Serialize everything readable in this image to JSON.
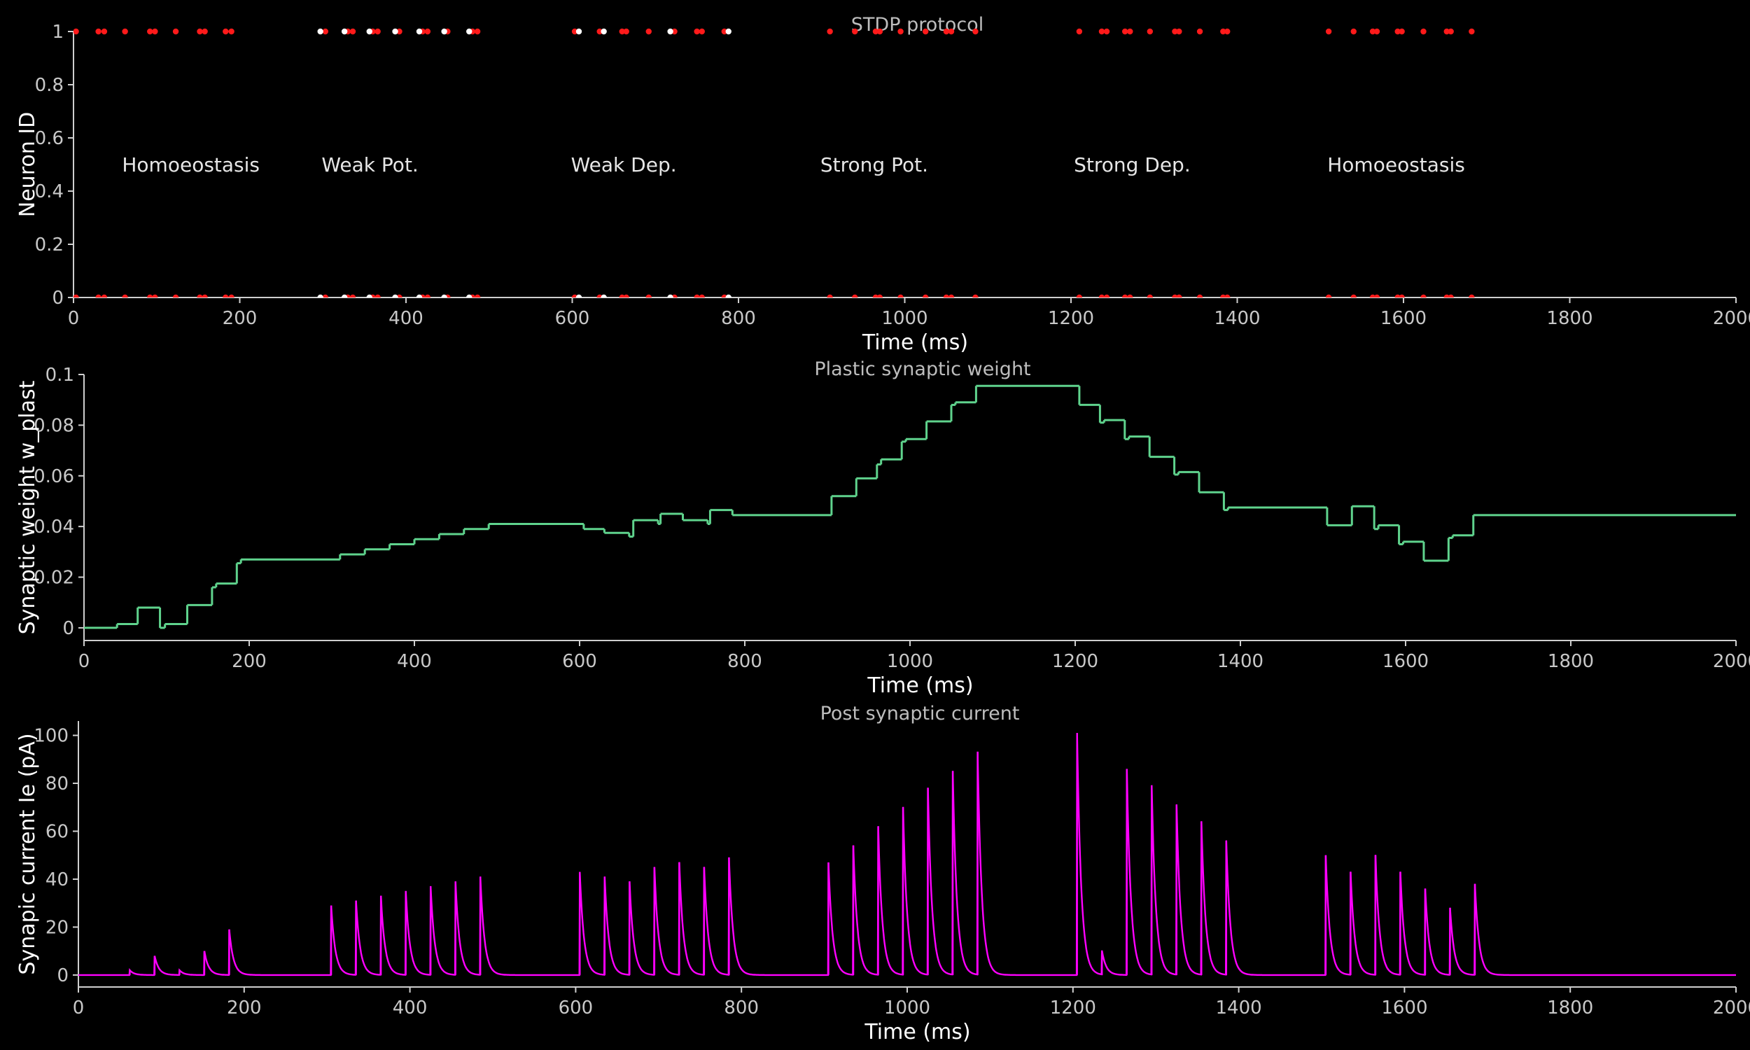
{
  "chart_data": [
    {
      "type": "scatter",
      "title": "STDP protocol",
      "xlabel": "Time (ms)",
      "ylabel": "Neuron ID",
      "xlim": [
        0,
        2000
      ],
      "ylim": [
        0,
        1
      ],
      "xticks": [
        "0",
        "200",
        "400",
        "600",
        "800",
        "1000",
        "1200",
        "1400",
        "1600",
        "1800",
        "2000"
      ],
      "yticks": [
        "0",
        "0.2",
        "0.4",
        "0.6",
        "0.8",
        "1"
      ],
      "grid": false,
      "colors": {
        "red": "#ff1a1a",
        "white": "#ffffff"
      },
      "annotations": [
        {
          "text": "Homoeostasis",
          "x": 50,
          "y": 0.5
        },
        {
          "text": "Weak Pot.",
          "x": 290,
          "y": 0.5
        },
        {
          "text": "Weak Dep.",
          "x": 590,
          "y": 0.5
        },
        {
          "text": "Strong Pot.",
          "x": 890,
          "y": 0.5
        },
        {
          "text": "Strong Dep.",
          "x": 1195,
          "y": 0.5
        },
        {
          "text": "Homoeostasis",
          "x": 1500,
          "y": 0.5
        }
      ],
      "series": [
        {
          "color": "red",
          "neuron": 1,
          "x": [
            3,
            30,
            37,
            62,
            92,
            98,
            123,
            152,
            158,
            183,
            190,
            303,
            330,
            336,
            360,
            366,
            392,
            420,
            426,
            450,
            480,
            486,
            603,
            633,
            660,
            665,
            692,
            723,
            750,
            756,
            783,
            910,
            940,
            965,
            970,
            995,
            1025,
            1050,
            1056,
            1085,
            1210,
            1237,
            1243,
            1265,
            1271,
            1295,
            1325,
            1330,
            1355,
            1383,
            1388,
            1510,
            1540,
            1563,
            1568,
            1593,
            1598,
            1624,
            1652,
            1657,
            1682
          ]
        },
        {
          "color": "white",
          "neuron": 1,
          "x": [
            297,
            326,
            356,
            387,
            416,
            446,
            476,
            608,
            638,
            718,
            788
          ]
        },
        {
          "color": "red",
          "neuron": 0,
          "x": [
            3,
            30,
            37,
            62,
            92,
            98,
            123,
            152,
            158,
            183,
            190,
            303,
            330,
            336,
            360,
            366,
            392,
            420,
            426,
            450,
            480,
            486,
            603,
            633,
            660,
            665,
            692,
            723,
            750,
            756,
            783,
            910,
            940,
            965,
            970,
            995,
            1025,
            1050,
            1056,
            1085,
            1210,
            1237,
            1243,
            1265,
            1271,
            1295,
            1325,
            1330,
            1355,
            1383,
            1388,
            1510,
            1540,
            1563,
            1568,
            1593,
            1598,
            1624,
            1652,
            1657,
            1682
          ]
        },
        {
          "color": "white",
          "neuron": 0,
          "x": [
            297,
            326,
            356,
            387,
            416,
            446,
            476,
            608,
            638,
            718,
            788
          ]
        }
      ]
    },
    {
      "type": "line",
      "title": "Plastic synaptic weight",
      "xlabel": "Time (ms)",
      "ylabel": "Synaptic weight w_plast",
      "xlim": [
        0,
        2000
      ],
      "ylim": [
        -0.005,
        0.1
      ],
      "xticks": [
        "0",
        "200",
        "400",
        "600",
        "800",
        "1000",
        "1200",
        "1400",
        "1600",
        "1800",
        "2000"
      ],
      "yticks": [
        "0",
        "0.02",
        "0.04",
        "0.06",
        "0.08",
        "0.1"
      ],
      "grid": false,
      "color": "#5fd38d",
      "step_points": [
        [
          0,
          0
        ],
        [
          40,
          0.0015
        ],
        [
          65,
          0.008
        ],
        [
          92,
          0
        ],
        [
          98,
          0.0015
        ],
        [
          125,
          0.009
        ],
        [
          155,
          0.016
        ],
        [
          160,
          0.0175
        ],
        [
          185,
          0.0255
        ],
        [
          190,
          0.027
        ],
        [
          310,
          0.029
        ],
        [
          340,
          0.031
        ],
        [
          370,
          0.033
        ],
        [
          400,
          0.035
        ],
        [
          430,
          0.037
        ],
        [
          460,
          0.039
        ],
        [
          490,
          0.041
        ],
        [
          605,
          0.039
        ],
        [
          630,
          0.0375
        ],
        [
          660,
          0.036
        ],
        [
          665,
          0.0425
        ],
        [
          695,
          0.041
        ],
        [
          698,
          0.045
        ],
        [
          725,
          0.0425
        ],
        [
          755,
          0.041
        ],
        [
          758,
          0.0465
        ],
        [
          785,
          0.0445
        ],
        [
          905,
          0.052
        ],
        [
          935,
          0.059
        ],
        [
          960,
          0.0645
        ],
        [
          965,
          0.0665
        ],
        [
          990,
          0.0735
        ],
        [
          995,
          0.0745
        ],
        [
          1020,
          0.0815
        ],
        [
          1050,
          0.088
        ],
        [
          1055,
          0.089
        ],
        [
          1080,
          0.0955
        ],
        [
          1205,
          0.088
        ],
        [
          1230,
          0.081
        ],
        [
          1235,
          0.082
        ],
        [
          1260,
          0.0745
        ],
        [
          1265,
          0.0755
        ],
        [
          1290,
          0.0675
        ],
        [
          1320,
          0.0605
        ],
        [
          1325,
          0.0615
        ],
        [
          1350,
          0.0535
        ],
        [
          1380,
          0.0465
        ],
        [
          1385,
          0.0475
        ],
        [
          1505,
          0.0405
        ],
        [
          1535,
          0.048
        ],
        [
          1562,
          0.039
        ],
        [
          1567,
          0.0405
        ],
        [
          1592,
          0.033
        ],
        [
          1597,
          0.034
        ],
        [
          1622,
          0.0265
        ],
        [
          1652,
          0.0355
        ],
        [
          1657,
          0.0365
        ],
        [
          1682,
          0.0445
        ],
        [
          2000,
          0.0445
        ]
      ]
    },
    {
      "type": "line",
      "title": "Post synaptic current",
      "xlabel": "Time (ms)",
      "ylabel": "Synapic current Ie (pA)",
      "xlim": [
        0,
        2000
      ],
      "ylim": [
        -5,
        106
      ],
      "xticks": [
        "0",
        "200",
        "400",
        "600",
        "800",
        "1000",
        "1200",
        "1400",
        "1600",
        "1800",
        "2000"
      ],
      "yticks": [
        "0",
        "20",
        "40",
        "60",
        "80",
        "100"
      ],
      "grid": false,
      "color": "#ff00ff",
      "decay_tau_ms": 5,
      "pulses": {
        "t": [
          62,
          92,
          122,
          152,
          182,
          305,
          335,
          365,
          395,
          425,
          455,
          485,
          605,
          635,
          665,
          695,
          725,
          755,
          785,
          905,
          935,
          965,
          995,
          1025,
          1055,
          1085,
          1205,
          1235,
          1265,
          1295,
          1325,
          1355,
          1385,
          1505,
          1535,
          1565,
          1595,
          1625,
          1655,
          1685
        ],
        "amp": [
          2,
          8,
          2,
          10,
          19,
          29,
          31,
          33,
          35,
          37,
          39,
          41,
          43,
          41,
          39,
          45,
          47,
          45,
          49,
          47,
          54,
          62,
          70,
          78,
          85,
          93,
          101,
          10,
          86,
          79,
          71,
          64,
          56,
          50,
          43,
          50,
          43,
          36,
          28,
          38
        ]
      }
    }
  ]
}
